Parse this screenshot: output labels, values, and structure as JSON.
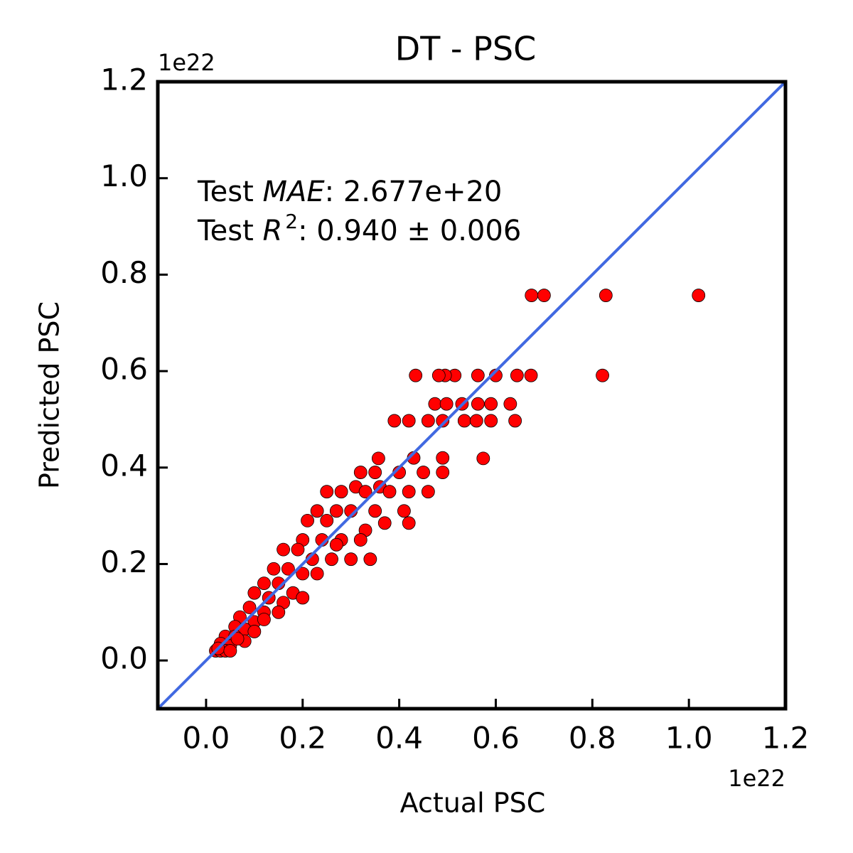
{
  "chart_data": {
    "type": "scatter",
    "title": "DT - PSC",
    "x_label": "Actual PSC",
    "y_label": "Predicted PSC",
    "x_offset_label": "1e22",
    "y_offset_label": "1e22",
    "annotations": [
      [
        "Test ",
        "MAE",
        ": 2.677e+20"
      ],
      [
        "Test ",
        "R",
        "2",
        ": 0.940 ± 0.006"
      ]
    ],
    "xlim": [
      -0.1,
      1.2
    ],
    "ylim": [
      -0.1,
      1.2
    ],
    "xticks": [
      {
        "value": 0,
        "label": "0.0"
      },
      0.2,
      0.4,
      0.6,
      0.8,
      {
        "value": 1,
        "label": "1.0"
      },
      1.2
    ],
    "yticks": [
      {
        "value": 0,
        "label": "0.0"
      },
      0.2,
      0.4,
      0.6,
      0.8,
      {
        "value": 1,
        "label": "1.0"
      },
      1.2
    ],
    "reference_line": {
      "x": [
        -0.1,
        1.2
      ],
      "y": [
        -0.1,
        1.2
      ],
      "color": "#4169e1"
    },
    "series": [
      {
        "color": "#ff0000",
        "x": [
          1.02,
          0.828,
          0.7,
          0.674,
          0.821,
          0.673,
          0.644,
          0.6,
          0.563,
          0.515,
          0.495,
          0.482,
          0.434,
          0.474,
          0.498,
          0.53,
          0.563,
          0.59,
          0.63,
          0.39,
          0.42,
          0.46,
          0.49,
          0.535,
          0.56,
          0.59,
          0.64,
          0.357,
          0.43,
          0.49,
          0.574,
          0.32,
          0.35,
          0.4,
          0.45,
          0.49,
          0.31,
          0.36,
          0.42,
          0.46,
          0.25,
          0.28,
          0.33,
          0.38,
          0.23,
          0.27,
          0.3,
          0.35,
          0.41,
          0.21,
          0.25,
          0.33,
          0.42,
          0.37,
          0.2,
          0.24,
          0.28,
          0.32,
          0.27,
          0.19,
          0.16,
          0.22,
          0.26,
          0.34,
          0.3,
          0.14,
          0.17,
          0.2,
          0.23,
          0.12,
          0.15,
          0.18,
          0.2,
          0.1,
          0.13,
          0.16,
          0.09,
          0.12,
          0.15,
          0.07,
          0.1,
          0.12,
          0.06,
          0.08,
          0.1,
          0.04,
          0.06,
          0.08,
          0.03,
          0.05,
          0.065,
          0.02,
          0.03,
          0.04,
          0.025,
          0.05
        ],
        "y": [
          0.757,
          0.757,
          0.757,
          0.757,
          0.591,
          0.591,
          0.591,
          0.591,
          0.591,
          0.591,
          0.591,
          0.591,
          0.591,
          0.532,
          0.532,
          0.532,
          0.532,
          0.532,
          0.532,
          0.497,
          0.497,
          0.497,
          0.497,
          0.497,
          0.497,
          0.497,
          0.497,
          0.419,
          0.42,
          0.42,
          0.419,
          0.39,
          0.39,
          0.39,
          0.39,
          0.39,
          0.36,
          0.36,
          0.35,
          0.35,
          0.35,
          0.35,
          0.35,
          0.35,
          0.31,
          0.31,
          0.31,
          0.31,
          0.31,
          0.29,
          0.29,
          0.27,
          0.285,
          0.285,
          0.25,
          0.25,
          0.25,
          0.25,
          0.24,
          0.23,
          0.23,
          0.21,
          0.21,
          0.21,
          0.21,
          0.19,
          0.19,
          0.18,
          0.18,
          0.16,
          0.16,
          0.14,
          0.13,
          0.14,
          0.13,
          0.12,
          0.11,
          0.1,
          0.1,
          0.09,
          0.08,
          0.085,
          0.07,
          0.065,
          0.06,
          0.05,
          0.05,
          0.04,
          0.035,
          0.03,
          0.045,
          0.02,
          0.02,
          0.02,
          0.025,
          0.02
        ]
      }
    ]
  }
}
